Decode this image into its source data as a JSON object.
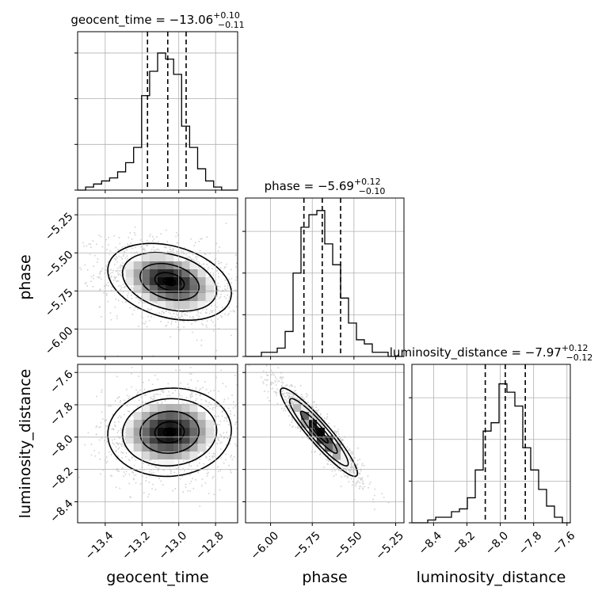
{
  "chart_data": {
    "type": "corner",
    "parameters": [
      {
        "name": "geocent_time",
        "xlim": [
          -13.55,
          -12.68
        ],
        "ticks": [
          -13.4,
          -13.2,
          -13.0,
          -12.8
        ],
        "tick_labels": [
          "−13.4",
          "−13.2",
          "−13.0",
          "−12.8"
        ],
        "title": {
          "prefix": "geocent_time = −13.06",
          "plus": "+0.10",
          "minus": "−0.11"
        },
        "quantiles": [
          -13.17,
          -13.06,
          -12.96
        ],
        "hist_edges": [
          -13.55,
          -13.5065,
          -13.463,
          -13.4195,
          -13.376,
          -13.3325,
          -13.289,
          -13.2455,
          -13.202,
          -13.1585,
          -13.115,
          -13.0715,
          -13.028,
          -12.9845,
          -12.941,
          -12.8975,
          -12.854,
          -12.8105,
          -12.767,
          -12.7235,
          -12.68
        ],
        "hist_counts": [
          0,
          1,
          2,
          3,
          4,
          6,
          9,
          14,
          31,
          39,
          45,
          43,
          38,
          21,
          14,
          7,
          3,
          1,
          0,
          0
        ],
        "hist_yticks": [
          0,
          15,
          30,
          45
        ],
        "hist_ymax": 52
      },
      {
        "name": "phase",
        "xlim": [
          -6.15,
          -5.2
        ],
        "ticks": [
          -6.0,
          -5.75,
          -5.5,
          -5.25
        ],
        "tick_labels": [
          "−6.00",
          "−5.75",
          "−5.50",
          "−5.25"
        ],
        "title": {
          "prefix": "phase = −5.69",
          "plus": "+0.12",
          "minus": "−0.10"
        },
        "quantiles": [
          -5.8,
          -5.69,
          -5.58
        ],
        "hist_edges": [
          -6.15,
          -6.1025,
          -6.055,
          -6.0075,
          -5.96,
          -5.9125,
          -5.865,
          -5.8175,
          -5.77,
          -5.7225,
          -5.675,
          -5.6275,
          -5.58,
          -5.5325,
          -5.485,
          -5.4375,
          -5.39,
          -5.3425,
          -5.295,
          -5.2475,
          -5.2
        ],
        "hist_counts": [
          0,
          0,
          1,
          1,
          2,
          6,
          20,
          31,
          34,
          35,
          27,
          22,
          14,
          8,
          4,
          3,
          1,
          1,
          0,
          0
        ],
        "hist_yticks": [
          0,
          10,
          20,
          30
        ],
        "hist_ymax": 38
      },
      {
        "name": "luminosity_distance",
        "xlim": [
          -8.53,
          -7.58
        ],
        "ticks": [
          -8.4,
          -8.2,
          -8.0,
          -7.8,
          -7.6
        ],
        "tick_labels": [
          "−8.4",
          "−8.2",
          "−8.0",
          "−7.8",
          "−7.6"
        ],
        "title": {
          "prefix": "luminosity_distance = −7.97",
          "plus": "+0.12",
          "minus": "−0.12"
        },
        "quantiles": [
          -8.09,
          -7.97,
          -7.85
        ],
        "hist_edges": [
          -8.53,
          -8.4825,
          -8.435,
          -8.3875,
          -8.34,
          -8.2925,
          -8.245,
          -8.1975,
          -8.15,
          -8.1025,
          -8.055,
          -8.0075,
          -7.96,
          -7.9125,
          -7.865,
          -7.8175,
          -7.77,
          -7.7225,
          -7.675,
          -7.6275,
          -7.58
        ],
        "hist_counts": [
          0,
          0,
          1,
          2,
          2,
          4,
          5,
          9,
          19,
          33,
          36,
          50,
          47,
          42,
          27,
          19,
          12,
          6,
          2,
          0
        ],
        "hist_yticks": [
          0,
          15,
          30,
          45
        ],
        "hist_ymax": 57
      }
    ],
    "pairs": [
      {
        "x": "geocent_time",
        "y": "phase",
        "ylim": [
          -6.18,
          -5.14
        ],
        "yticks": [
          -6.0,
          -5.75,
          -5.5,
          -5.25
        ],
        "ytick_labels": [
          "−6.00",
          "−5.75",
          "−5.50",
          "−5.25"
        ],
        "center": [
          -13.05,
          -5.69
        ],
        "spread": [
          0.16,
          0.12
        ],
        "corr": -0.3,
        "contour_levels": [
          0.2,
          0.5,
          1.0,
          1.6,
          2.1
        ]
      },
      {
        "x": "geocent_time",
        "y": "luminosity_distance",
        "ylim": [
          -8.53,
          -7.55
        ],
        "yticks": [
          -8.4,
          -8.2,
          -8.0,
          -7.8,
          -7.6
        ],
        "ytick_labels": [
          "−8.4",
          "−8.2",
          "−8.0",
          "−7.8",
          "−7.6"
        ],
        "center": [
          -13.05,
          -7.97
        ],
        "spread": [
          0.16,
          0.13
        ],
        "corr": 0.05,
        "contour_levels": [
          0.2,
          0.5,
          1.0,
          1.6,
          2.1
        ]
      },
      {
        "x": "phase",
        "y": "luminosity_distance",
        "ylim": [
          -8.53,
          -7.55
        ],
        "yticks": [
          -8.4,
          -8.2,
          -8.0,
          -7.8,
          -7.6
        ],
        "ytick_labels": [
          "−8.4",
          "−8.2",
          "−8.0",
          "−7.8",
          "−7.6"
        ],
        "center": [
          -5.71,
          -7.97
        ],
        "spread": [
          0.11,
          0.13
        ],
        "corr": -0.93,
        "contour_levels": [
          0.2,
          0.5,
          1.0,
          1.6,
          2.1
        ]
      }
    ],
    "xlabel_bottom": [
      "geocent_time",
      "phase",
      "luminosity_distance"
    ],
    "ylabel_left": [
      "phase",
      "luminosity_distance"
    ],
    "grid": true
  }
}
